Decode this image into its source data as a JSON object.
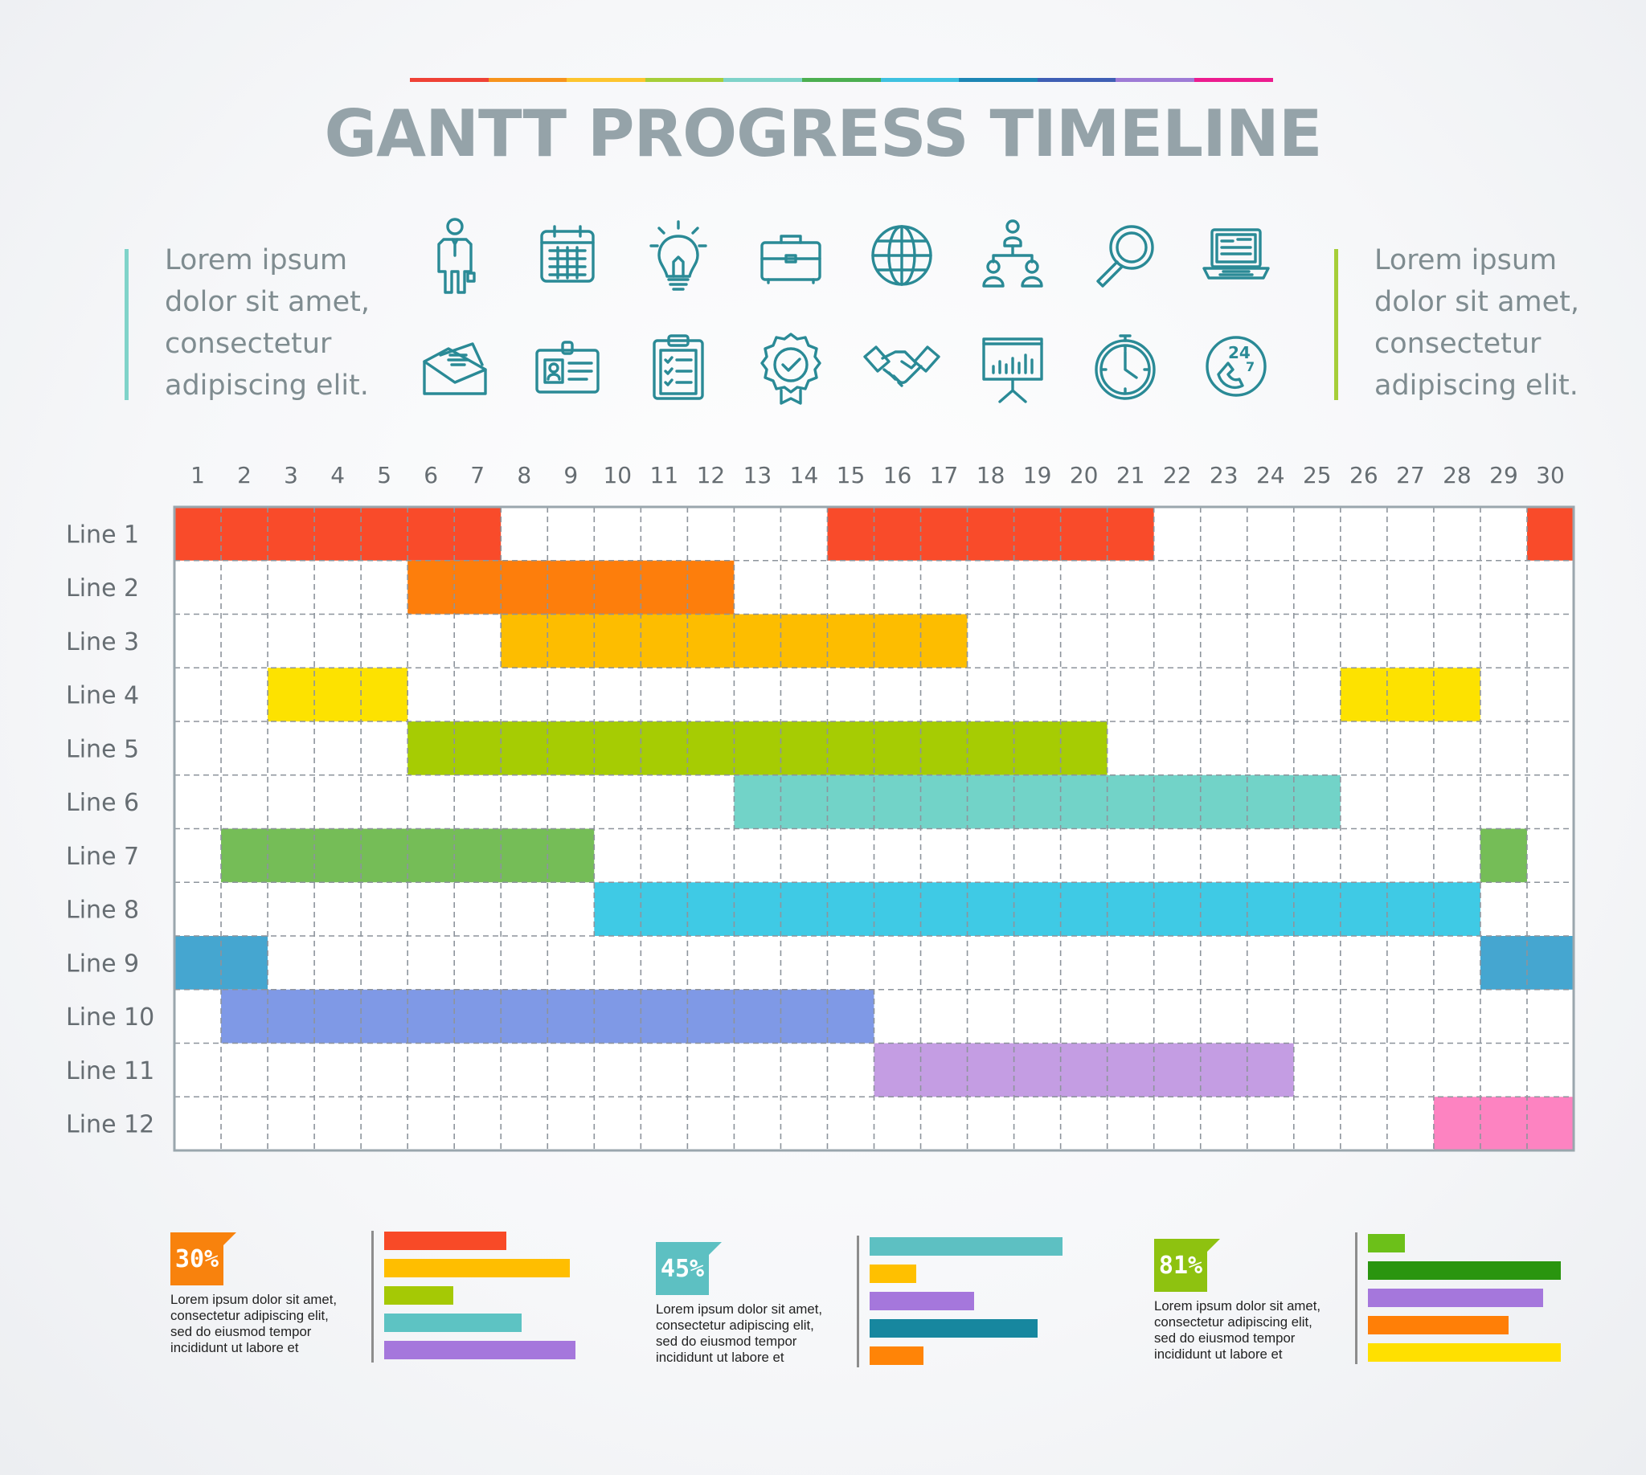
{
  "title": "GANTT PROGRESS TIMELINE",
  "title_rule_colors": [
    "#ef4136",
    "#f7941d",
    "#fdc52f",
    "#a6ce39",
    "#7fd3c9",
    "#4caf50",
    "#3ec1e0",
    "#1d86b5",
    "#3f5fb5",
    "#9e7bd6",
    "#ec1c8f"
  ],
  "left_text": {
    "lines": [
      "Lorem ipsum",
      "dolor sit amet,",
      "consectetur",
      "adipiscing elit."
    ],
    "accent": "#7fd3c9"
  },
  "right_text": {
    "lines": [
      "Lorem ipsum",
      "dolor sit amet,",
      "consectetur",
      "adipiscing elit."
    ],
    "accent": "#a6ce39"
  },
  "icons": [
    "businessman-icon",
    "calendar-icon",
    "lightbulb-icon",
    "briefcase-icon",
    "globe-icon",
    "org-chart-icon",
    "magnifier-icon",
    "laptop-icon",
    "envelope-icon",
    "id-badge-icon",
    "clipboard-icon",
    "award-badge-icon",
    "handshake-icon",
    "presentation-board-icon",
    "clock-icon",
    "support-24-7-icon"
  ],
  "icon_color": "#2a8a96",
  "chart_data": {
    "type": "gantt",
    "days": [
      1,
      2,
      3,
      4,
      5,
      6,
      7,
      8,
      9,
      10,
      11,
      12,
      13,
      14,
      15,
      16,
      17,
      18,
      19,
      20,
      21,
      22,
      23,
      24,
      25,
      26,
      27,
      28,
      29,
      30
    ],
    "rows": [
      {
        "label": "Line 1",
        "color": "#f94b2a",
        "segments": [
          [
            1,
            7
          ],
          [
            15,
            21
          ],
          [
            30,
            30
          ]
        ]
      },
      {
        "label": "Line 2",
        "color": "#fd7e0c",
        "segments": [
          [
            6,
            12
          ]
        ]
      },
      {
        "label": "Line 3",
        "color": "#fdbd00",
        "segments": [
          [
            8,
            17
          ]
        ]
      },
      {
        "label": "Line 4",
        "color": "#fde200",
        "segments": [
          [
            3,
            5
          ],
          [
            26,
            28
          ]
        ]
      },
      {
        "label": "Line 5",
        "color": "#a6cc03",
        "segments": [
          [
            6,
            20
          ]
        ]
      },
      {
        "label": "Line 6",
        "color": "#72d3c8",
        "segments": [
          [
            13,
            25
          ]
        ]
      },
      {
        "label": "Line 7",
        "color": "#75bd57",
        "segments": [
          [
            2,
            9
          ],
          [
            29,
            29
          ]
        ]
      },
      {
        "label": "Line 8",
        "color": "#3fcae5",
        "segments": [
          [
            10,
            28
          ]
        ]
      },
      {
        "label": "Line 9",
        "color": "#45a6d0",
        "segments": [
          [
            1,
            2
          ],
          [
            29,
            30
          ]
        ]
      },
      {
        "label": "Line 10",
        "color": "#7f99e6",
        "segments": [
          [
            2,
            15
          ]
        ]
      },
      {
        "label": "Line 11",
        "color": "#c49de3",
        "segments": [
          [
            16,
            24
          ]
        ]
      },
      {
        "label": "Line 12",
        "color": "#fd83c1",
        "segments": [
          [
            28,
            30
          ]
        ]
      }
    ],
    "mini_charts": [
      {
        "percent": "30%",
        "badge_color": "#f8820d",
        "text": [
          "Lorem ipsum dolor sit amet,",
          "consectetur adipiscing elit,",
          "sed do eiusmod tempor",
          "incididunt ut labore et"
        ],
        "bars": [
          {
            "value": 0.64,
            "color": "#f84a27"
          },
          {
            "value": 0.97,
            "color": "#ffbe00"
          },
          {
            "value": 0.36,
            "color": "#a5c905"
          },
          {
            "value": 0.72,
            "color": "#5dc3c3"
          },
          {
            "value": 1.0,
            "color": "#a577dc"
          }
        ]
      },
      {
        "percent": "45%",
        "badge_color": "#5dc0c2",
        "text": [
          "Lorem ipsum dolor sit amet,",
          "consectetur adipiscing elit,",
          "sed do eiusmod tempor",
          "incididunt ut labore et"
        ],
        "bars": [
          {
            "value": 1.0,
            "color": "#5dc0c2"
          },
          {
            "value": 0.24,
            "color": "#ffc000"
          },
          {
            "value": 0.54,
            "color": "#a577dc"
          },
          {
            "value": 0.87,
            "color": "#17879f"
          },
          {
            "value": 0.28,
            "color": "#ff8407"
          }
        ]
      },
      {
        "percent": "81%",
        "badge_color": "#8ec210",
        "text": [
          "Lorem ipsum dolor sit amet,",
          "consectetur adipiscing elit,",
          "sed do eiusmod tempor",
          "incididunt ut labore et"
        ],
        "bars": [
          {
            "value": 0.19,
            "color": "#6cc019"
          },
          {
            "value": 1.0,
            "color": "#2a950f"
          },
          {
            "value": 0.91,
            "color": "#a577dc"
          },
          {
            "value": 0.73,
            "color": "#ff7f07"
          },
          {
            "value": 1.0,
            "color": "#ffe000"
          }
        ]
      }
    ]
  }
}
